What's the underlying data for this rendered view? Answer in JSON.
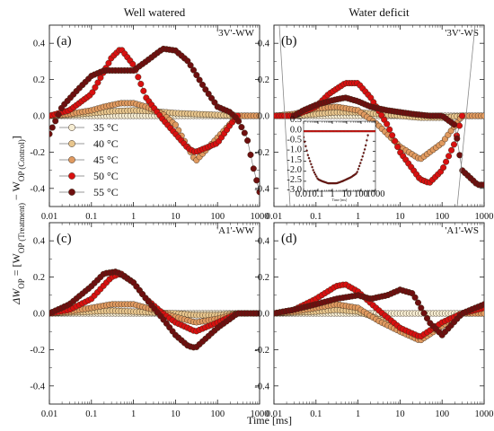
{
  "figure": {
    "column_titles": [
      "Well watered",
      "Water deficit"
    ],
    "xlabel": "Time [ms]",
    "ylabel": "ΔW_OP = [W_OP (Treatment) − W_OP (Control)]",
    "ylabel_parts": {
      "prefix": "ΔW",
      "prefix_sub": "OP",
      "eq": " = [W",
      "sub1": "OP (Treatment)",
      "minus": " − W",
      "sub2": "OP (Control)",
      "close": "]"
    },
    "x_tick_labels": [
      "0.01",
      "0.1",
      "1",
      "10",
      "100",
      "1000"
    ],
    "y_tick_labels": [
      "-0.4",
      "-0.2",
      "0.0",
      "0.2",
      "0.4"
    ],
    "legend": {
      "entries": [
        "35 °C",
        "40 °C",
        "45 °C",
        "50 °C",
        "55 °C"
      ],
      "colors": [
        "#f6edd3",
        "#e8c68e",
        "#e09a60",
        "#d81010",
        "#6e0f0f"
      ]
    },
    "inset": {
      "xlabel": "Time [ms]",
      "x_tick_labels": [
        "0.01",
        "0.1",
        "1",
        "10",
        "100",
        "1000"
      ],
      "y_tick_labels": [
        "0.5",
        "0.0",
        "-0.5",
        "-1.0",
        "-1.5",
        "-2.0",
        "-2.5",
        "-3.0"
      ]
    }
  },
  "chart_data": [
    {
      "type": "scatter",
      "panel": "(a)",
      "label": "'3V'-WW",
      "x_scale": "log",
      "xlim": [
        0.01,
        1000
      ],
      "ylim": [
        -0.5,
        0.5
      ],
      "series": [
        {
          "name": "35 °C",
          "color": "#f6edd3",
          "x": [
            0.01,
            0.03,
            0.1,
            0.3,
            1,
            3,
            10,
            30,
            100,
            300,
            1000
          ],
          "y": [
            0.0,
            0.0,
            0.0,
            0.0,
            0.0,
            0.0,
            0.0,
            0.0,
            0.0,
            0.0,
            0.0
          ]
        },
        {
          "name": "40 °C",
          "color": "#e8c68e",
          "x": [
            0.01,
            0.03,
            0.1,
            0.3,
            1,
            3,
            10,
            30,
            100,
            300,
            1000
          ],
          "y": [
            0.0,
            0.005,
            0.015,
            0.025,
            0.03,
            0.025,
            0.015,
            0.01,
            0.005,
            0.0,
            0.0
          ]
        },
        {
          "name": "45 °C",
          "color": "#e09a60",
          "x": [
            0.01,
            0.03,
            0.1,
            0.2,
            0.5,
            1,
            2,
            5,
            10,
            30,
            100,
            300,
            1000
          ],
          "y": [
            0.0,
            0.01,
            0.03,
            0.05,
            0.07,
            0.07,
            0.05,
            0.01,
            -0.05,
            -0.25,
            -0.12,
            0.0,
            0.0
          ]
        },
        {
          "name": "50 °C",
          "color": "#d81010",
          "x": [
            0.01,
            0.03,
            0.1,
            0.3,
            0.5,
            1,
            2,
            5,
            10,
            20,
            30,
            100,
            200,
            300
          ],
          "y": [
            0.0,
            0.03,
            0.12,
            0.32,
            0.37,
            0.28,
            0.1,
            -0.02,
            -0.1,
            -0.18,
            -0.2,
            -0.15,
            -0.05,
            0.0
          ]
        },
        {
          "name": "55 °C",
          "color": "#6e0f0f",
          "x": [
            0.01,
            0.02,
            0.05,
            0.1,
            0.2,
            0.5,
            1,
            2,
            5,
            10,
            20,
            50,
            100,
            200,
            300,
            500,
            700,
            1000
          ],
          "y": [
            -0.1,
            0.05,
            0.15,
            0.22,
            0.25,
            0.25,
            0.25,
            0.3,
            0.37,
            0.36,
            0.3,
            0.15,
            0.05,
            0.02,
            -0.02,
            -0.12,
            -0.28,
            -0.42
          ]
        }
      ]
    },
    {
      "type": "scatter",
      "panel": "(b)",
      "label": "'3V'-WS",
      "x_scale": "log",
      "xlim": [
        0.01,
        1000
      ],
      "ylim": [
        -0.5,
        0.5
      ],
      "series": [
        {
          "name": "35 °C",
          "color": "#f6edd3",
          "x": [
            0.01,
            0.03,
            0.1,
            0.3,
            1,
            3,
            10,
            30,
            100,
            300,
            1000
          ],
          "y": [
            0.0,
            0.0,
            0.0,
            0.0,
            0.0,
            0.0,
            0.0,
            0.0,
            0.0,
            0.0,
            0.0
          ]
        },
        {
          "name": "40 °C",
          "color": "#e8c68e",
          "x": [
            0.01,
            0.03,
            0.1,
            0.3,
            1,
            3,
            10,
            30,
            100,
            300,
            1000
          ],
          "y": [
            0.0,
            0.0,
            0.01,
            0.02,
            0.02,
            0.01,
            0.0,
            -0.01,
            -0.01,
            0.0,
            0.0
          ]
        },
        {
          "name": "45 °C",
          "color": "#e09a60",
          "x": [
            0.01,
            0.03,
            0.1,
            0.3,
            1,
            3,
            10,
            30,
            100,
            300,
            1000
          ],
          "y": [
            0.0,
            0.01,
            0.04,
            0.05,
            0.03,
            -0.05,
            -0.17,
            -0.24,
            -0.15,
            0.0,
            0.0
          ]
        },
        {
          "name": "50 °C",
          "color": "#d81010",
          "x": [
            0.01,
            0.03,
            0.1,
            0.2,
            0.5,
            1,
            2,
            5,
            10,
            30,
            50,
            100,
            200,
            300
          ],
          "y": [
            0.0,
            0.0,
            0.05,
            0.12,
            0.18,
            0.18,
            0.1,
            -0.05,
            -0.2,
            -0.35,
            -0.37,
            -0.3,
            -0.15,
            0.0
          ]
        },
        {
          "name": "55 °C",
          "color": "#6e0f0f",
          "x": [
            0.03,
            0.05,
            0.1,
            0.2,
            0.3,
            0.5,
            1,
            2,
            5,
            10,
            20,
            50,
            100,
            200,
            300,
            700,
            1000
          ],
          "y": [
            0.0,
            0.03,
            0.06,
            0.08,
            0.09,
            0.1,
            0.08,
            0.05,
            0.03,
            0.02,
            0.01,
            0.0,
            0.0,
            -0.05,
            -0.3,
            -0.38,
            -0.38
          ]
        }
      ]
    },
    {
      "type": "scatter",
      "panel": "(c)",
      "label": "'A1'-WW",
      "x_scale": "log",
      "xlim": [
        0.01,
        1000
      ],
      "ylim": [
        -0.5,
        0.5
      ],
      "series": [
        {
          "name": "35 °C",
          "color": "#f6edd3",
          "x": [
            0.01,
            0.03,
            0.1,
            0.3,
            1,
            3,
            10,
            30,
            100,
            300,
            1000
          ],
          "y": [
            0.0,
            0.0,
            0.0,
            0.0,
            0.0,
            0.0,
            0.0,
            0.0,
            0.0,
            0.0,
            0.0
          ]
        },
        {
          "name": "40 °C",
          "color": "#e8c68e",
          "x": [
            0.01,
            0.03,
            0.1,
            0.3,
            1,
            3,
            10,
            30,
            100,
            300,
            1000
          ],
          "y": [
            0.0,
            0.005,
            0.01,
            0.015,
            0.01,
            0.005,
            0.0,
            -0.01,
            -0.01,
            0.0,
            0.0
          ]
        },
        {
          "name": "45 °C",
          "color": "#e09a60",
          "x": [
            0.01,
            0.03,
            0.1,
            0.3,
            1,
            3,
            10,
            30,
            100,
            300,
            1000
          ],
          "y": [
            0.0,
            0.01,
            0.03,
            0.05,
            0.05,
            0.02,
            -0.02,
            -0.05,
            -0.03,
            0.0,
            0.0
          ]
        },
        {
          "name": "50 °C",
          "color": "#d81010",
          "x": [
            0.01,
            0.03,
            0.1,
            0.3,
            0.5,
            1,
            2,
            5,
            10,
            30,
            100,
            300,
            1000
          ],
          "y": [
            0.0,
            0.02,
            0.08,
            0.2,
            0.22,
            0.17,
            0.08,
            0.0,
            -0.05,
            -0.1,
            -0.05,
            0.0,
            0.0
          ]
        },
        {
          "name": "55 °C",
          "color": "#6e0f0f",
          "x": [
            0.01,
            0.03,
            0.1,
            0.2,
            0.4,
            1,
            2,
            5,
            10,
            20,
            30,
            100,
            300,
            1000
          ],
          "y": [
            0.0,
            0.05,
            0.15,
            0.22,
            0.23,
            0.17,
            0.08,
            -0.03,
            -0.12,
            -0.18,
            -0.19,
            -0.08,
            0.0,
            0.0
          ]
        }
      ]
    },
    {
      "type": "scatter",
      "panel": "(d)",
      "label": "'A1'-WS",
      "x_scale": "log",
      "xlim": [
        0.01,
        1000
      ],
      "ylim": [
        -0.5,
        0.5
      ],
      "series": [
        {
          "name": "35 °C",
          "color": "#f6edd3",
          "x": [
            0.01,
            0.03,
            0.1,
            0.3,
            1,
            3,
            10,
            30,
            100,
            300,
            1000
          ],
          "y": [
            0.0,
            0.0,
            0.0,
            0.0,
            0.0,
            0.0,
            0.0,
            0.0,
            0.0,
            0.0,
            0.0
          ]
        },
        {
          "name": "40 °C",
          "color": "#e8c68e",
          "x": [
            0.01,
            0.03,
            0.1,
            0.3,
            1,
            3,
            10,
            30,
            100,
            300,
            1000
          ],
          "y": [
            0.0,
            0.005,
            0.01,
            0.02,
            0.01,
            -0.03,
            -0.08,
            -0.14,
            -0.06,
            0.0,
            0.0
          ]
        },
        {
          "name": "45 °C",
          "color": "#e09a60",
          "x": [
            0.01,
            0.03,
            0.1,
            0.3,
            1,
            3,
            10,
            30,
            100,
            300,
            1000
          ],
          "y": [
            0.0,
            0.01,
            0.03,
            0.05,
            0.03,
            -0.04,
            -0.1,
            -0.15,
            -0.07,
            0.0,
            0.0
          ]
        },
        {
          "name": "50 °C",
          "color": "#d81010",
          "x": [
            0.01,
            0.03,
            0.1,
            0.3,
            0.5,
            1,
            3,
            10,
            30,
            100,
            300,
            1000
          ],
          "y": [
            0.0,
            0.02,
            0.08,
            0.15,
            0.16,
            0.12,
            0.02,
            -0.08,
            -0.13,
            -0.05,
            0.0,
            0.03
          ]
        },
        {
          "name": "55 °C",
          "color": "#6e0f0f",
          "x": [
            0.01,
            0.03,
            0.1,
            0.3,
            1,
            2,
            5,
            10,
            20,
            50,
            100,
            300,
            1000
          ],
          "y": [
            0.0,
            0.02,
            0.05,
            0.08,
            0.1,
            0.08,
            0.1,
            0.13,
            0.11,
            -0.05,
            -0.12,
            0.0,
            0.05
          ]
        }
      ]
    },
    {
      "type": "scatter",
      "panel": "(b) inset",
      "xlabel": "Time [ms]",
      "x_scale": "log",
      "xlim": [
        0.01,
        1000
      ],
      "ylim": [
        -3.0,
        0.5
      ],
      "series": [
        {
          "name": "55 °C",
          "color": "#6e0f0f",
          "x": [
            0.01,
            0.02,
            0.05,
            0.1,
            0.2,
            0.5,
            1,
            2,
            5,
            10,
            20,
            50,
            100,
            200,
            300
          ],
          "y": [
            -0.3,
            -1.2,
            -2.0,
            -2.4,
            -2.5,
            -2.6,
            -2.6,
            -2.6,
            -2.5,
            -2.4,
            -2.3,
            -2.1,
            -1.5,
            -0.8,
            -0.2
          ]
        },
        {
          "name": "50 °C",
          "color": "#d81010",
          "x": [
            0.01,
            0.1,
            1,
            10,
            100,
            1000
          ],
          "y": [
            0.0,
            0.0,
            0.0,
            0.0,
            0.0,
            0.0
          ]
        }
      ]
    }
  ]
}
